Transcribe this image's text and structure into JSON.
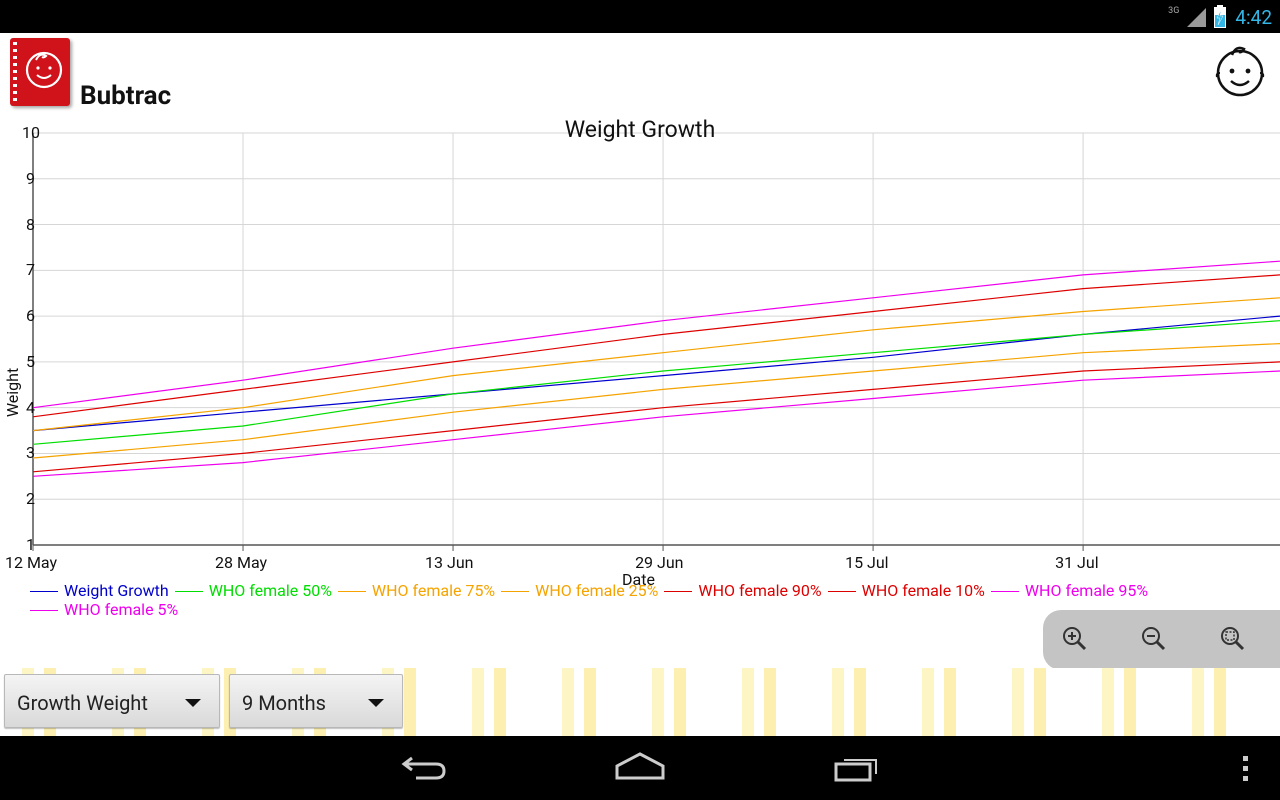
{
  "status_bar": {
    "network_label": "3G",
    "time": "4:42",
    "clock_color": "#33b5e5"
  },
  "app": {
    "title": "Bubtrac",
    "brand_color": "#d0121b",
    "icon": "baby-face-notebook-icon",
    "profile_icon": "baby-face-icon"
  },
  "chart_data": {
    "type": "line",
    "title": "Weight Growth",
    "xlabel": "Date",
    "ylabel": "Weight",
    "ylim": [
      1,
      10
    ],
    "yticks": [
      "1",
      "2",
      "3",
      "4",
      "5",
      "6",
      "7",
      "8",
      "9",
      "10"
    ],
    "x_tick_labels": [
      "12 May",
      "28 May",
      "13 Jun",
      "29 Jun",
      "15 Jul",
      "31 Jul"
    ],
    "x_tick_dates": [
      "2013-05-12",
      "2013-05-28",
      "2013-06-13",
      "2013-06-29",
      "2013-07-15",
      "2013-07-31"
    ],
    "x_range": [
      "2013-05-12",
      "2013-08-15"
    ],
    "grid": true,
    "legend_position": "bottom",
    "series": [
      {
        "name": "Weight Growth",
        "color": "#0000cc",
        "points": [
          [
            "2013-05-12",
            3.5
          ],
          [
            "2013-05-28",
            3.9
          ],
          [
            "2013-06-13",
            4.3
          ],
          [
            "2013-06-29",
            4.7
          ],
          [
            "2013-07-15",
            5.1
          ],
          [
            "2013-07-31",
            5.6
          ],
          [
            "2013-08-15",
            6.0
          ]
        ]
      },
      {
        "name": "WHO female 50%",
        "color": "#00dd00",
        "points": [
          [
            "2013-05-12",
            3.2
          ],
          [
            "2013-05-28",
            3.6
          ],
          [
            "2013-06-13",
            4.3
          ],
          [
            "2013-06-29",
            4.8
          ],
          [
            "2013-07-15",
            5.2
          ],
          [
            "2013-07-31",
            5.6
          ],
          [
            "2013-08-15",
            5.9
          ]
        ]
      },
      {
        "name": "WHO female 75%",
        "color": "#f5a300",
        "points": [
          [
            "2013-05-12",
            3.5
          ],
          [
            "2013-05-28",
            4.0
          ],
          [
            "2013-06-13",
            4.7
          ],
          [
            "2013-06-29",
            5.2
          ],
          [
            "2013-07-15",
            5.7
          ],
          [
            "2013-07-31",
            6.1
          ],
          [
            "2013-08-15",
            6.4
          ]
        ]
      },
      {
        "name": "WHO female 25%",
        "color": "#f5a300",
        "points": [
          [
            "2013-05-12",
            2.9
          ],
          [
            "2013-05-28",
            3.3
          ],
          [
            "2013-06-13",
            3.9
          ],
          [
            "2013-06-29",
            4.4
          ],
          [
            "2013-07-15",
            4.8
          ],
          [
            "2013-07-31",
            5.2
          ],
          [
            "2013-08-15",
            5.4
          ]
        ]
      },
      {
        "name": "WHO female 90%",
        "color": "#dd0000",
        "points": [
          [
            "2013-05-12",
            3.8
          ],
          [
            "2013-05-28",
            4.4
          ],
          [
            "2013-06-13",
            5.0
          ],
          [
            "2013-06-29",
            5.6
          ],
          [
            "2013-07-15",
            6.1
          ],
          [
            "2013-07-31",
            6.6
          ],
          [
            "2013-08-15",
            6.9
          ]
        ]
      },
      {
        "name": "WHO female 10%",
        "color": "#dd0000",
        "points": [
          [
            "2013-05-12",
            2.6
          ],
          [
            "2013-05-28",
            3.0
          ],
          [
            "2013-06-13",
            3.5
          ],
          [
            "2013-06-29",
            4.0
          ],
          [
            "2013-07-15",
            4.4
          ],
          [
            "2013-07-31",
            4.8
          ],
          [
            "2013-08-15",
            5.0
          ]
        ]
      },
      {
        "name": "WHO female 95%",
        "color": "#ee00ee",
        "points": [
          [
            "2013-05-12",
            4.0
          ],
          [
            "2013-05-28",
            4.6
          ],
          [
            "2013-06-13",
            5.3
          ],
          [
            "2013-06-29",
            5.9
          ],
          [
            "2013-07-15",
            6.4
          ],
          [
            "2013-07-31",
            6.9
          ],
          [
            "2013-08-15",
            7.2
          ]
        ]
      },
      {
        "name": "WHO female 5%",
        "color": "#ee00ee",
        "points": [
          [
            "2013-05-12",
            2.5
          ],
          [
            "2013-05-28",
            2.8
          ],
          [
            "2013-06-13",
            3.3
          ],
          [
            "2013-06-29",
            3.8
          ],
          [
            "2013-07-15",
            4.2
          ],
          [
            "2013-07-31",
            4.6
          ],
          [
            "2013-08-15",
            4.8
          ]
        ]
      }
    ]
  },
  "zoom_controls": {
    "icons": [
      "zoom-in-icon",
      "zoom-out-icon",
      "zoom-reset-icon"
    ]
  },
  "controls": {
    "chart_type_selected": "Growth Weight",
    "period_selected": "9 Months"
  },
  "nav_bar": {
    "icons": [
      "back-icon",
      "home-icon",
      "recent-apps-icon",
      "overflow-menu-icon"
    ]
  }
}
